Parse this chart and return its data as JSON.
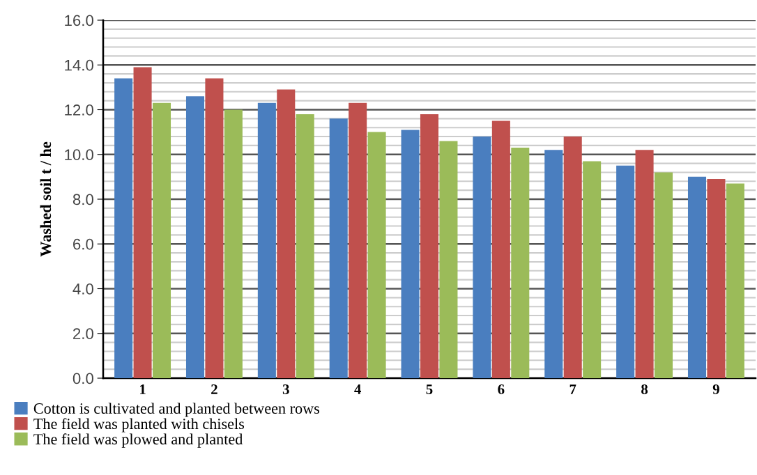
{
  "chart_data": {
    "type": "bar",
    "ylabel": "Washed soil t / he",
    "categories": [
      "1",
      "2",
      "3",
      "4",
      "5",
      "6",
      "7",
      "8",
      "9"
    ],
    "series": [
      {
        "name": "Cotton is cultivated and planted between rows",
        "color": "#4a7ebf",
        "values": [
          13.4,
          12.6,
          12.3,
          11.6,
          11.1,
          10.8,
          10.2,
          9.5,
          9.0
        ]
      },
      {
        "name": "The field was planted with chisels",
        "color": "#c0504d",
        "values": [
          13.9,
          13.4,
          12.9,
          12.3,
          11.8,
          11.5,
          10.8,
          10.2,
          8.9
        ]
      },
      {
        "name": "The field was plowed and planted",
        "color": "#9bbb59",
        "values": [
          12.3,
          12.0,
          11.8,
          11.0,
          10.6,
          10.3,
          9.7,
          9.2,
          8.7
        ]
      }
    ],
    "ylim": [
      0,
      16
    ],
    "yticks": [
      {
        "value": 0,
        "label": "0.0"
      },
      {
        "value": 2,
        "label": "2.0"
      },
      {
        "value": 4,
        "label": "4.0"
      },
      {
        "value": 6,
        "label": "6.0"
      },
      {
        "value": 8,
        "label": "8.0"
      },
      {
        "value": 10,
        "label": "10.0"
      },
      {
        "value": 12,
        "label": "12.0"
      },
      {
        "value": 14,
        "label": "14.0"
      },
      {
        "value": 16,
        "label": "16.0"
      }
    ],
    "grid": "y",
    "legend": "bottom left"
  }
}
